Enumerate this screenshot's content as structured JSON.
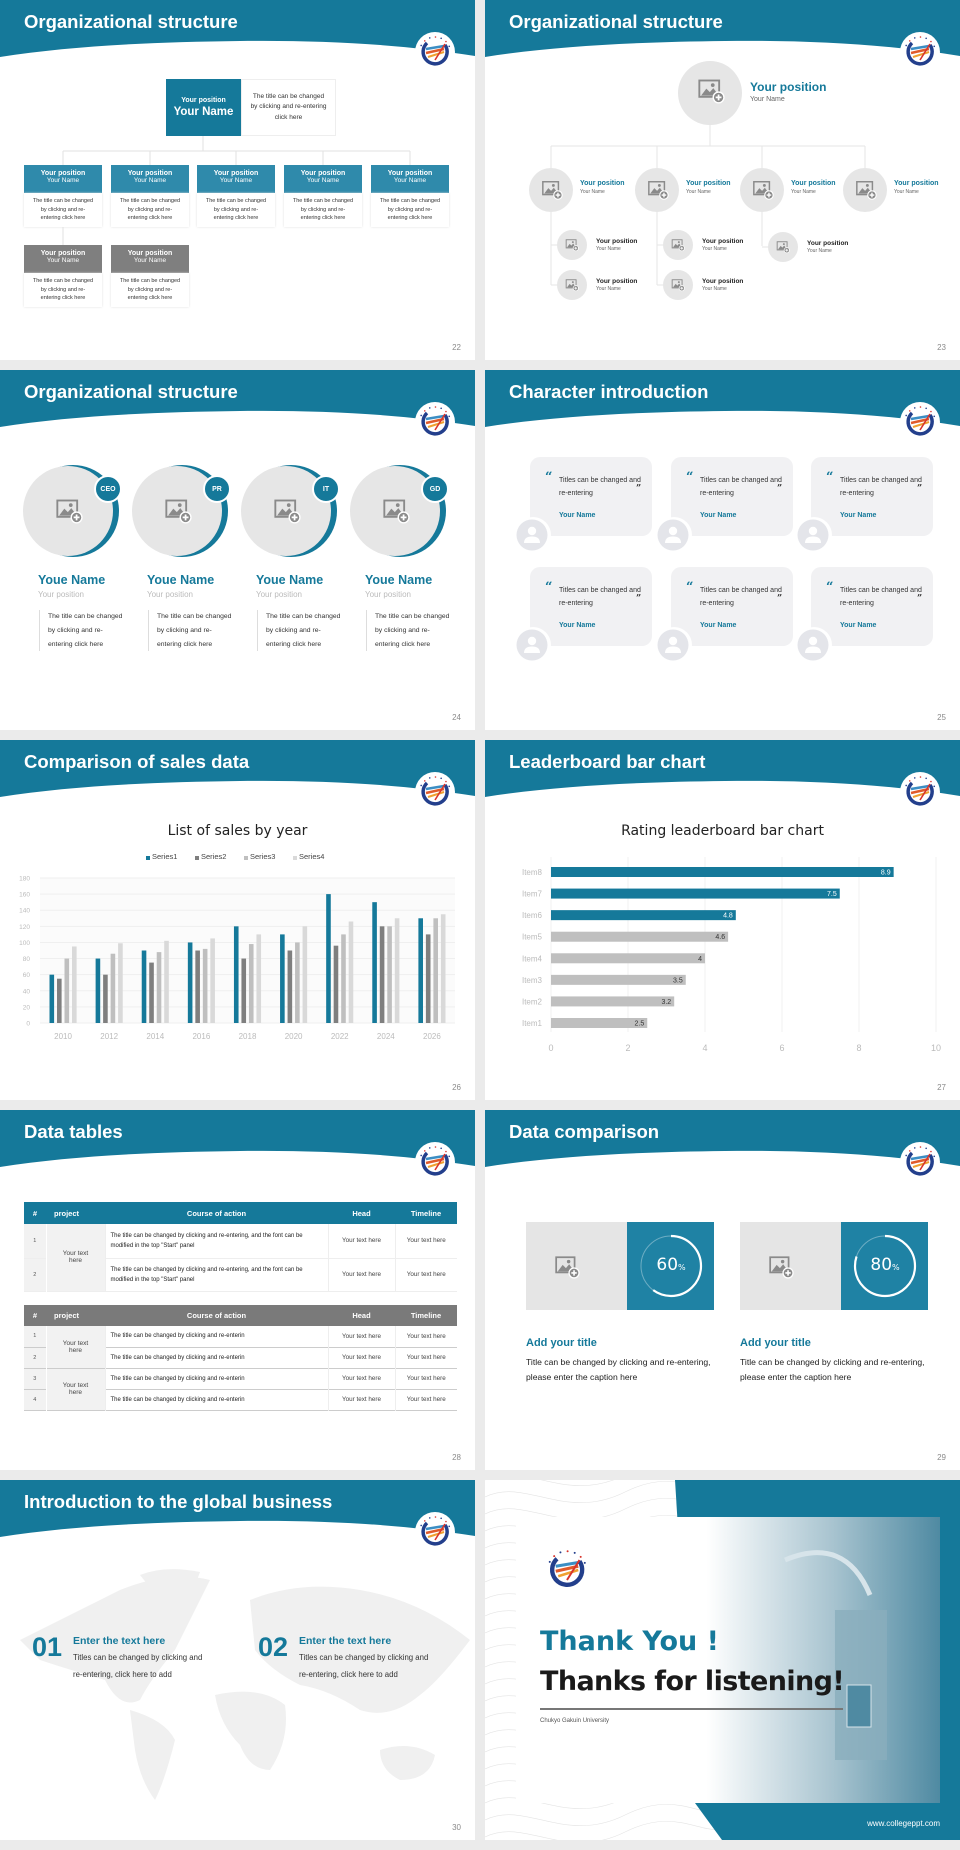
{
  "brand_color": "#15799a",
  "slides": [
    {
      "number": "22",
      "title": "Organizational structure",
      "top": {
        "position": "Your position",
        "name": "Your Name",
        "desc": "The title can be changed by clicking and re-entering click here"
      },
      "members": [
        {
          "position": "Your position",
          "name": "Your Name",
          "desc": "The title can be changed by clicking and re-entering click here",
          "color": "#2f8aab"
        },
        {
          "position": "Your position",
          "name": "Your Name",
          "desc": "The title can be changed by clicking and re-entering click here",
          "color": "#2f8aab"
        },
        {
          "position": "Your position",
          "name": "Your Name",
          "desc": "The title can be changed by clicking and re-entering click here",
          "color": "#2f8aab"
        },
        {
          "position": "Your position",
          "name": "Your Name",
          "desc": "The title can be changed by clicking and re-entering click here",
          "color": "#2f8aab"
        },
        {
          "position": "Your position",
          "name": "Your Name",
          "desc": "The title can be changed by clicking and re-entering click here",
          "color": "#2f8aab"
        },
        {
          "position": "Your position",
          "name": "Your Name",
          "desc": "The title can be changed by clicking and re-entering click here",
          "color": "#7f7f7f"
        },
        {
          "position": "Your position",
          "name": "Your Name",
          "desc": "The title can be changed by clicking and re-entering click here",
          "color": "#7f7f7f"
        }
      ]
    },
    {
      "number": "23",
      "title": "Organizational structure",
      "top": {
        "position": "Your position",
        "name": "Your Name"
      },
      "branches": [
        {
          "position": "Your position",
          "name": "Your Name",
          "children": [
            {
              "position": "Your position",
              "name": "Your Name"
            },
            {
              "position": "Your position",
              "name": "Your Name"
            }
          ]
        },
        {
          "position": "Your position",
          "name": "Your Name",
          "children": [
            {
              "position": "Your position",
              "name": "Your Name"
            },
            {
              "position": "Your position",
              "name": "Your Name"
            }
          ]
        },
        {
          "position": "Your position",
          "name": "Your Name",
          "children": [
            {
              "position": "Your position",
              "name": "Your Name"
            }
          ]
        },
        {
          "position": "Your position",
          "name": "Your Name",
          "children": []
        }
      ]
    },
    {
      "number": "24",
      "title": "Organizational structure",
      "people": [
        {
          "badge": "CEO",
          "name": "Youe Name",
          "position": "Your position",
          "desc": "The title can be changed by clicking and re-entering click here"
        },
        {
          "badge": "PR",
          "name": "Youe Name",
          "position": "Your position",
          "desc": "The title can be changed by clicking and re-entering click here"
        },
        {
          "badge": "IT",
          "name": "Youe Name",
          "position": "Your position",
          "desc": "The title can be changed by clicking and re-entering click here"
        },
        {
          "badge": "GD",
          "name": "Youe Name",
          "position": "Your position",
          "desc": "The title can be changed by clicking and re-entering click here"
        }
      ]
    },
    {
      "number": "25",
      "title": "Character introduction",
      "cards": [
        {
          "quote": "Titles can be changed and re-entering",
          "name": "Your Name"
        },
        {
          "quote": "Titles can be changed and re-entering",
          "name": "Your Name"
        },
        {
          "quote": "Titles can be changed and re-entering",
          "name": "Your Name"
        },
        {
          "quote": "Titles can be changed and re-entering",
          "name": "Your Name"
        },
        {
          "quote": "Titles can be changed and re-entering",
          "name": "Your Name"
        },
        {
          "quote": "Titles can be changed and re-entering",
          "name": "Your Name"
        }
      ]
    },
    {
      "number": "26",
      "title": "Comparison of sales data"
    },
    {
      "number": "27",
      "title": "Leaderboard bar chart"
    },
    {
      "number": "28",
      "title": "Data tables",
      "tables": [
        {
          "header_color": "#15799a",
          "headers": [
            "#",
            "project",
            "Course of action",
            "Head",
            "Timeline"
          ],
          "groups": [
            {
              "project": "Your text here",
              "rows": [
                {
                  "n": "1",
                  "course": "The title can be changed by clicking and re-entering, and the font can be modified in the top \"Start\" panel",
                  "head": "Your text here",
                  "timeline": "Your text here"
                },
                {
                  "n": "2",
                  "course": "The title can be changed by clicking and re-entering, and the font can be modified in the top \"Start\" panel",
                  "head": "Your text here",
                  "timeline": "Your text here"
                }
              ]
            }
          ]
        },
        {
          "header_color": "#7a7a7a",
          "headers": [
            "#",
            "project",
            "Course of action",
            "Head",
            "Timeline"
          ],
          "groups": [
            {
              "project": "Your text here",
              "rows": [
                {
                  "n": "1",
                  "course": "The title can be changed by clicking and re-enterin",
                  "head": "Your text here",
                  "timeline": "Your text here"
                },
                {
                  "n": "2",
                  "course": "The title can be changed by clicking and re-enterin",
                  "head": "Your text here",
                  "timeline": "Your text here"
                }
              ]
            },
            {
              "project": "Your text here",
              "rows": [
                {
                  "n": "3",
                  "course": "The title can be changed by clicking and re-enterin",
                  "head": "Your text here",
                  "timeline": "Your text here"
                },
                {
                  "n": "4",
                  "course": "The title can be changed by clicking and re-enterin",
                  "head": "Your text here",
                  "timeline": "Your text here"
                }
              ]
            }
          ]
        }
      ]
    },
    {
      "number": "29",
      "title": "Data comparison",
      "items": [
        {
          "percent": 60,
          "unit": "%",
          "title": "Add your title",
          "desc": "Title can be changed by clicking and re-entering, please enter the caption here"
        },
        {
          "percent": 80,
          "unit": "%",
          "title": "Add your title",
          "desc": "Title can be changed by clicking and re-entering, please enter the caption here"
        }
      ]
    },
    {
      "number": "30",
      "title": "Introduction to the global business",
      "items": [
        {
          "num": "01",
          "title": "Enter the text here",
          "desc": "Titles can be changed by clicking and re-entering, click here to add"
        },
        {
          "num": "02",
          "title": "Enter the text here",
          "desc": "Titles can be changed by clicking and re-entering, click here to add"
        }
      ]
    },
    {
      "thanks_title": "Thank You !",
      "thanks_subtitle": "Thanks for listening!",
      "university": "Chukyo Gakuin University",
      "website": "www.collegeppt.com"
    }
  ],
  "chart_data": [
    {
      "type": "bar",
      "title": "List of sales by year",
      "categories": [
        "2010",
        "2012",
        "2014",
        "2016",
        "2018",
        "2020",
        "2022",
        "2024",
        "2026"
      ],
      "series": [
        {
          "name": "Series1",
          "color": "#15799a",
          "values": [
            60,
            80,
            90,
            100,
            120,
            110,
            160,
            150,
            130
          ]
        },
        {
          "name": "Series2",
          "color": "#7f7f7f",
          "values": [
            55,
            60,
            75,
            90,
            80,
            90,
            96,
            120,
            110
          ]
        },
        {
          "name": "Series3",
          "color": "#bfbfbf",
          "values": [
            80,
            86,
            88,
            92,
            98,
            100,
            110,
            120,
            130
          ]
        },
        {
          "name": "Series4",
          "color": "#d9d9d9",
          "values": [
            95,
            99,
            102,
            105,
            110,
            120,
            126,
            130,
            135
          ]
        }
      ],
      "ylim": [
        0,
        180
      ],
      "y_ticks": [
        0,
        20,
        40,
        60,
        80,
        100,
        120,
        140,
        160,
        180
      ],
      "legend": "top",
      "grid": true
    },
    {
      "type": "bar",
      "orientation": "horizontal",
      "title": "Rating leaderboard bar chart",
      "categories": [
        "Item1",
        "Item2",
        "Item3",
        "Item4",
        "Item5",
        "Item6",
        "Item7",
        "Item8"
      ],
      "values": [
        2.5,
        3.2,
        3.5,
        4,
        4.6,
        4.8,
        7.5,
        8.9
      ],
      "colors": [
        "#bfbfbf",
        "#bfbfbf",
        "#bfbfbf",
        "#bfbfbf",
        "#bfbfbf",
        "#15799a",
        "#15799a",
        "#15799a"
      ],
      "xlim": [
        0,
        10
      ],
      "x_ticks": [
        0,
        2,
        4,
        6,
        8,
        10
      ],
      "grid": true
    }
  ]
}
